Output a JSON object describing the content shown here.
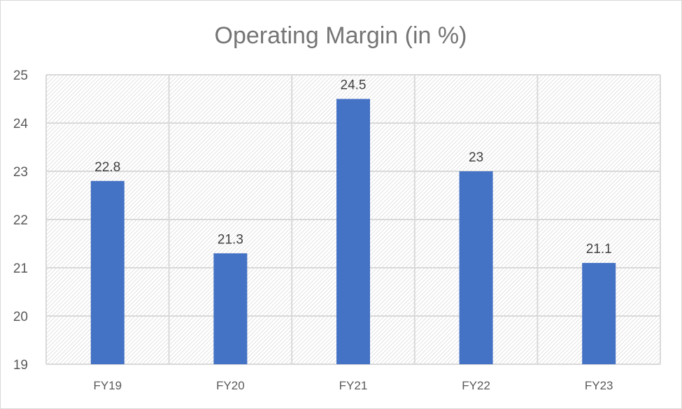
{
  "chart_data": {
    "type": "bar",
    "title": "Operating Margin (in %)",
    "categories": [
      "FY19",
      "FY20",
      "FY21",
      "FY22",
      "FY23"
    ],
    "values": [
      22.8,
      21.3,
      24.5,
      23,
      21.1
    ],
    "data_labels": [
      "22.8",
      "21.3",
      "24.5",
      "23",
      "21.1"
    ],
    "ylim": [
      19,
      25
    ],
    "yticks": [
      "19",
      "20",
      "21",
      "22",
      "23",
      "24",
      "25"
    ],
    "grid": true,
    "bar_color": "#4472c4",
    "plot_background": "diagonal hatch",
    "xlabel": "",
    "ylabel": ""
  }
}
